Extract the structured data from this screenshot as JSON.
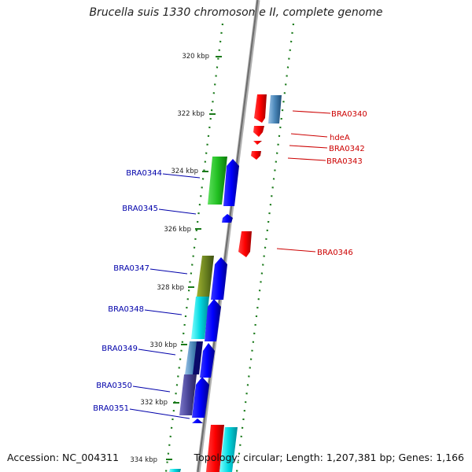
{
  "title": "Brucella suis 1330 chromosome II, complete genome",
  "accession_text": "Accession: NC_004311",
  "summary_text": "Topology: circular; Length: 1,207,381 bp; Genes: 1,166",
  "ruler": {
    "unit": "kbp",
    "ticks": [
      {
        "label": "320 kbp",
        "value": 320
      },
      {
        "label": "322 kbp",
        "value": 322
      },
      {
        "label": "324 kbp",
        "value": 324
      },
      {
        "label": "326 kbp",
        "value": 326
      },
      {
        "label": "328 kbp",
        "value": 328
      },
      {
        "label": "330 kbp",
        "value": 330
      },
      {
        "label": "332 kbp",
        "value": 332
      },
      {
        "label": "334 kbp",
        "value": 334
      }
    ]
  },
  "genes_forward": [
    {
      "label": "BRA0340"
    },
    {
      "label": "hdeA"
    },
    {
      "label": "BRA0342"
    },
    {
      "label": "BRA0343"
    },
    {
      "label": "BRA0346"
    }
  ],
  "genes_reverse": [
    {
      "label": "BRA0344"
    },
    {
      "label": "BRA0345"
    },
    {
      "label": "BRA0347"
    },
    {
      "label": "BRA0348"
    },
    {
      "label": "BRA0349"
    },
    {
      "label": "BRA0350"
    },
    {
      "label": "BRA0351"
    }
  ],
  "colors": {
    "forward_strand": "#ff0000",
    "reverse_strand": "#0000ff",
    "forward_label": "#cc0000",
    "reverse_label": "#0000aa",
    "backbone": "#808080",
    "gc_ticks": "#1a7a1a"
  }
}
